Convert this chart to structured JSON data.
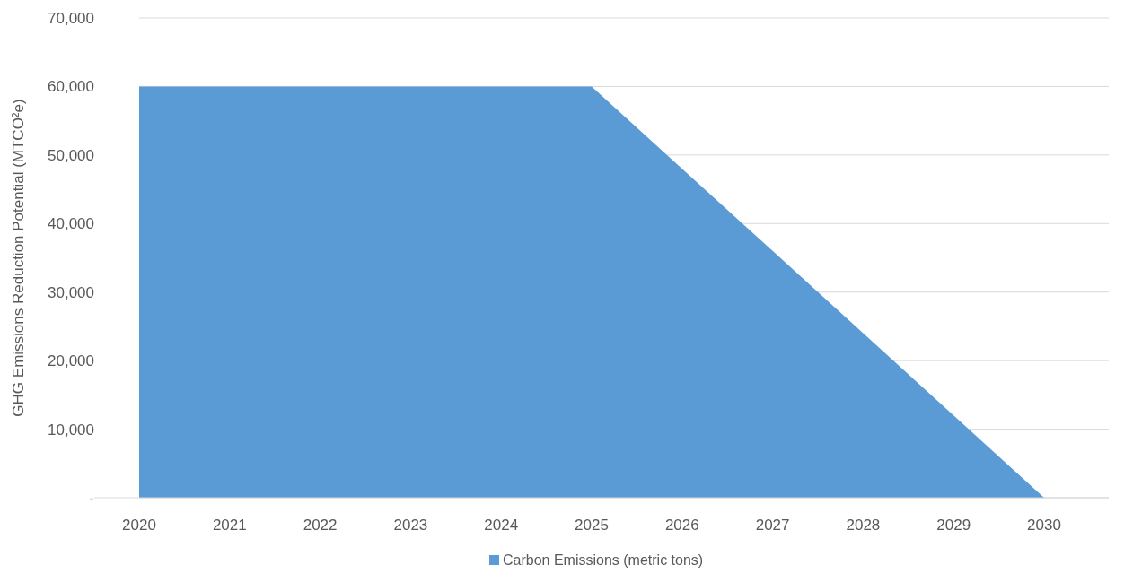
{
  "chart_data": {
    "type": "area",
    "ylabel": "GHG Emissions Reduction Potential (MTCO²e)",
    "categories": [
      "2020",
      "2021",
      "2022",
      "2023",
      "2024",
      "2025",
      "2026",
      "2027",
      "2028",
      "2029",
      "2030"
    ],
    "series": [
      {
        "name": "Carbon Emissions (metric tons)",
        "color": "#5b9bd5",
        "values": [
          60000,
          60000,
          60000,
          60000,
          60000,
          60000,
          48000,
          36000,
          24000,
          12000,
          0
        ]
      }
    ],
    "ylim": [
      0,
      70000
    ],
    "yticks": [
      {
        "value": 0,
        "label": "-"
      },
      {
        "value": 10000,
        "label": "10,000"
      },
      {
        "value": 20000,
        "label": "20,000"
      },
      {
        "value": 30000,
        "label": "30,000"
      },
      {
        "value": 40000,
        "label": "40,000"
      },
      {
        "value": 50000,
        "label": "50,000"
      },
      {
        "value": 60000,
        "label": "60,000"
      },
      {
        "value": 70000,
        "label": "70,000"
      }
    ],
    "grid": "y",
    "legend": "bottom"
  }
}
